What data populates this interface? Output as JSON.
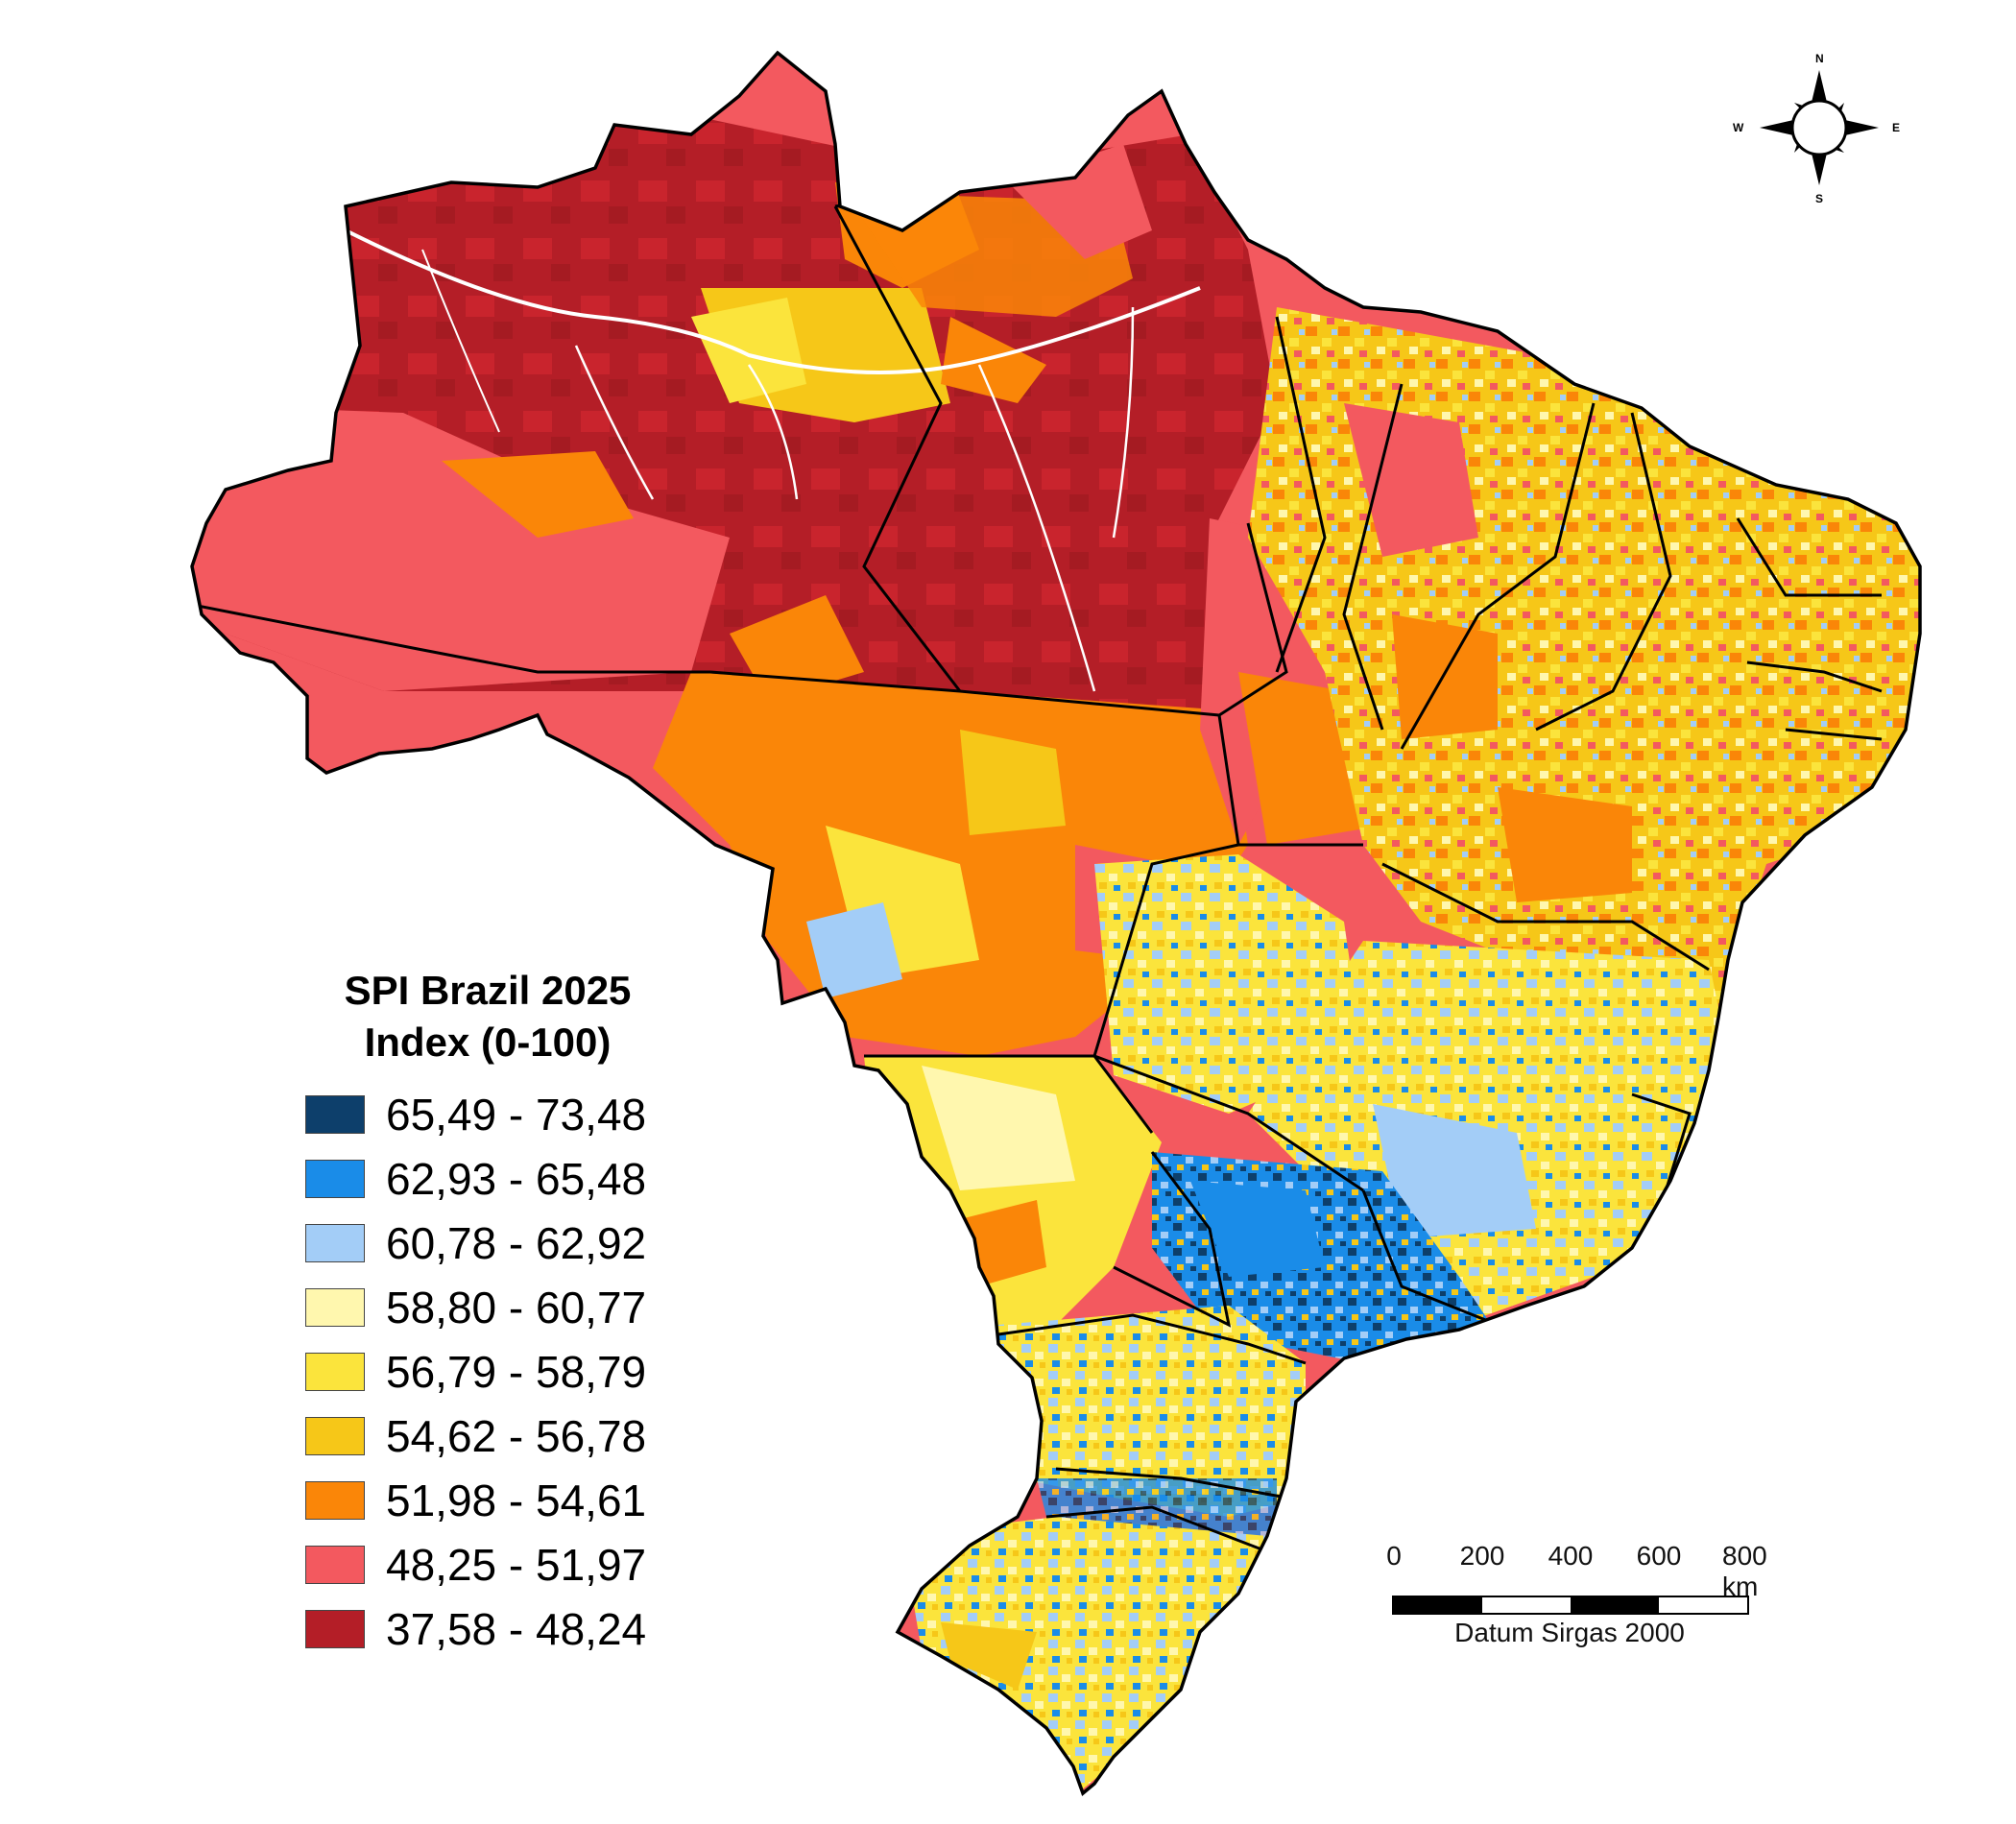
{
  "legend": {
    "title_line1": "SPI Brazil 2025",
    "title_line2": "Index (0-100)",
    "classes": [
      {
        "label": "65,49 - 73,48",
        "color": "#0d3f6b"
      },
      {
        "label": "62,93 - 65,48",
        "color": "#1a8ce8"
      },
      {
        "label": "60,78 - 62,92",
        "color": "#a3cdf7"
      },
      {
        "label": "58,80 - 60,77",
        "color": "#fff7ae"
      },
      {
        "label": "56,79 - 58,79",
        "color": "#fbe43c"
      },
      {
        "label": "54,62 - 56,78",
        "color": "#f6c718"
      },
      {
        "label": "51,98 - 54,61",
        "color": "#fa8608"
      },
      {
        "label": "48,25 - 51,97",
        "color": "#f3595f"
      },
      {
        "label": "37,58 - 48,24",
        "color": "#b41e27"
      }
    ]
  },
  "scale_bar": {
    "ticks": [
      "0",
      "200",
      "400",
      "600",
      "800 km"
    ],
    "datum": "Datum Sirgas 2000"
  },
  "compass": {
    "n": "N",
    "s": "S",
    "e": "E",
    "w": "W"
  }
}
